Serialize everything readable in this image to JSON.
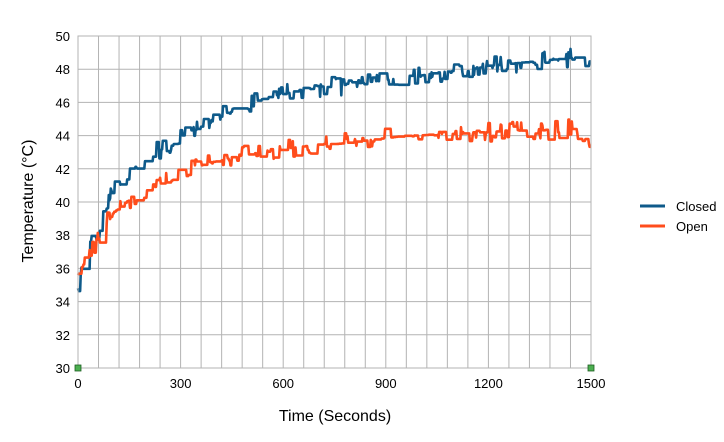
{
  "chart_data": {
    "type": "line",
    "title": "",
    "xlabel": "Time (Seconds)",
    "ylabel": "Temperature (°C)",
    "xlim": [
      0,
      1500
    ],
    "ylim": [
      30,
      50
    ],
    "x_ticks": [
      0,
      300,
      600,
      900,
      1200,
      1500
    ],
    "y_ticks": [
      30,
      32,
      34,
      36,
      38,
      40,
      42,
      44,
      46,
      48,
      50
    ],
    "grid": {
      "vertical_minor_step": 60,
      "horizontal_step": 2
    },
    "legend_position": "right",
    "series": [
      {
        "name": "Closed",
        "color": "#0e5a8a",
        "x": [
          0,
          10,
          20,
          30,
          45,
          60,
          75,
          90,
          105,
          120,
          140,
          160,
          180,
          200,
          225,
          250,
          275,
          300,
          330,
          360,
          390,
          420,
          450,
          480,
          510,
          540,
          570,
          600,
          640,
          680,
          720,
          760,
          800,
          840,
          880,
          920,
          960,
          1000,
          1050,
          1100,
          1150,
          1200,
          1250,
          1300,
          1350,
          1400,
          1450,
          1500
        ],
        "y": [
          34.8,
          35.8,
          36.2,
          37.0,
          37.6,
          38.0,
          39.0,
          40.0,
          40.8,
          41.0,
          41.2,
          42.0,
          42.3,
          42.5,
          43.0,
          43.2,
          43.4,
          43.8,
          44.2,
          44.5,
          44.8,
          45.2,
          45.6,
          45.8,
          46.0,
          46.2,
          46.4,
          46.5,
          46.7,
          46.8,
          46.9,
          47.0,
          47.1,
          47.2,
          47.3,
          47.4,
          47.6,
          47.6,
          47.8,
          47.9,
          48.0,
          48.2,
          48.3,
          48.4,
          48.5,
          48.6,
          48.7,
          48.7
        ]
      },
      {
        "name": "Open",
        "color": "#ff4d1c",
        "x": [
          0,
          10,
          20,
          30,
          45,
          60,
          75,
          90,
          105,
          120,
          140,
          160,
          180,
          200,
          225,
          250,
          275,
          300,
          330,
          360,
          390,
          420,
          450,
          480,
          510,
          540,
          570,
          600,
          640,
          680,
          720,
          760,
          800,
          840,
          880,
          920,
          960,
          1000,
          1050,
          1100,
          1150,
          1200,
          1250,
          1300,
          1350,
          1400,
          1450,
          1500
        ],
        "y": [
          35.6,
          36.0,
          36.4,
          37.0,
          37.4,
          37.8,
          38.4,
          38.9,
          39.4,
          39.6,
          40.0,
          40.2,
          40.3,
          40.6,
          40.9,
          41.1,
          41.3,
          41.6,
          41.9,
          42.2,
          42.4,
          42.5,
          42.7,
          42.8,
          42.9,
          43.0,
          43.1,
          43.2,
          43.3,
          43.4,
          43.5,
          43.5,
          43.6,
          43.7,
          43.8,
          43.9,
          44.0,
          44.0,
          44.1,
          44.1,
          44.2,
          44.2,
          44.3,
          44.3,
          44.3,
          44.4,
          44.4,
          43.4
        ]
      }
    ]
  }
}
